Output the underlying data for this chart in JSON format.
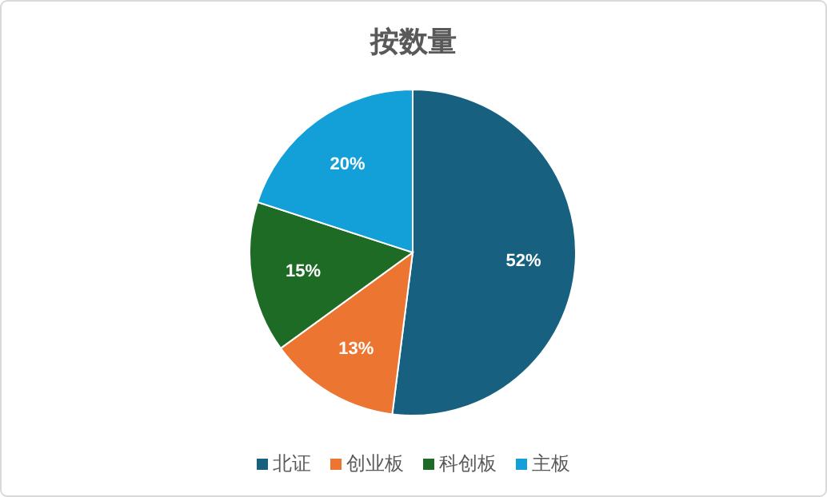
{
  "chart_data": {
    "type": "pie",
    "title": "按数量",
    "categories": [
      "北证",
      "创业板",
      "科创板",
      "主板"
    ],
    "values": [
      52,
      13,
      15,
      20
    ],
    "colors": [
      "#17607f",
      "#ec7531",
      "#1d6b24",
      "#13a0d8"
    ],
    "value_labels": [
      "52%",
      "13%",
      "15%",
      "20%"
    ],
    "legend": "bottom"
  }
}
